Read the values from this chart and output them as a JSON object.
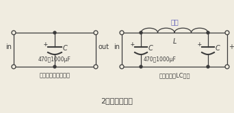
{
  "bg_color": "#f0ece0",
  "line_color": "#3a3a3a",
  "text_color": "#3a3a3a",
  "title_bottom": "2、电源滤波器",
  "label_left": "电源滤波－电容滤波",
  "label_right": "电源滤波－LC滤波",
  "top_label": "――"
}
